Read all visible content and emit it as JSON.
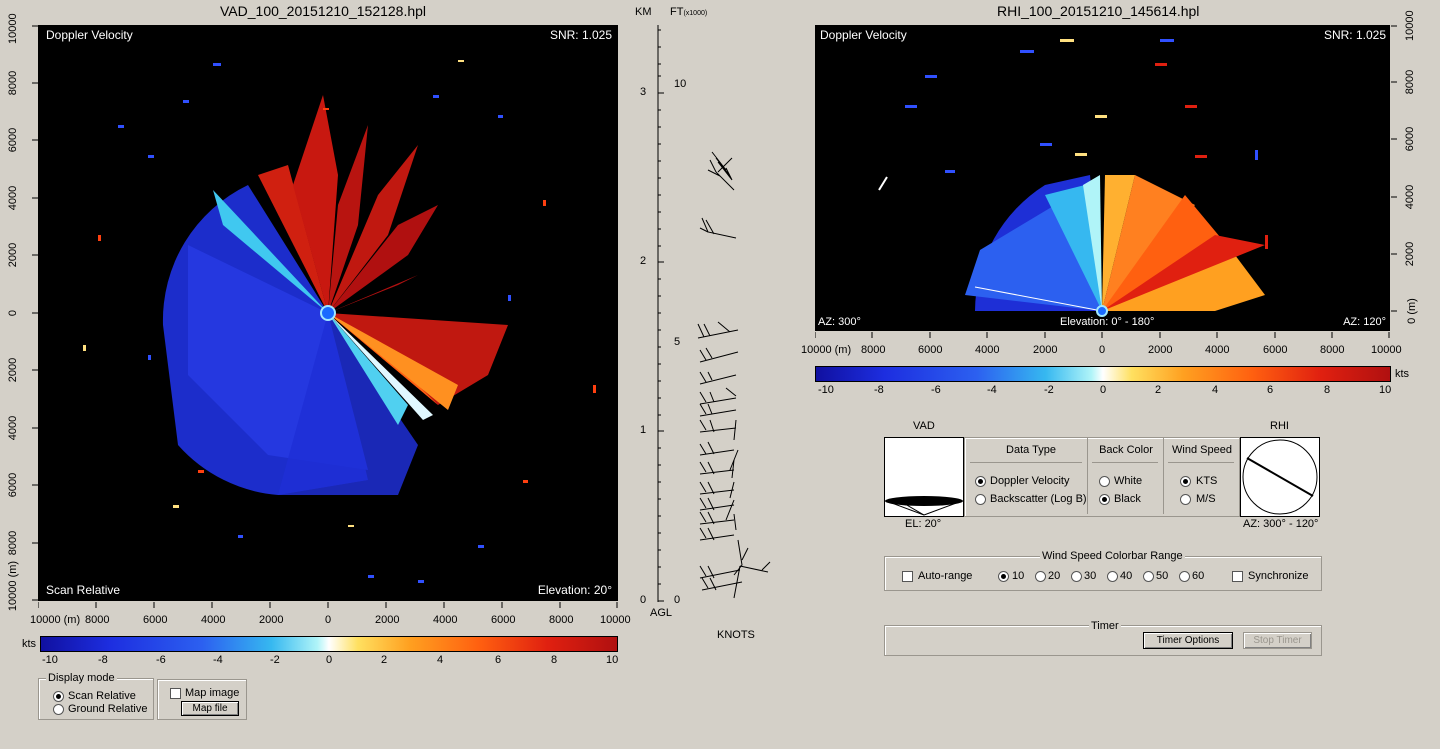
{
  "vad": {
    "title": "VAD_100_20151210_152128.hpl",
    "top_left": "Doppler Velocity",
    "top_right": "SNR: 1.025",
    "bottom_left": "Scan Relative",
    "bottom_right": "Elevation: 20°",
    "x_ticks": [
      "10000 (m)",
      "8000",
      "6000",
      "4000",
      "2000",
      "0",
      "2000",
      "4000",
      "6000",
      "8000",
      "10000"
    ],
    "y_ticks": [
      "10000",
      "8000",
      "6000",
      "4000",
      "2000",
      "0",
      "2000",
      "4000",
      "6000",
      "8000",
      "10000 (m)"
    ],
    "cbar_unit": "kts",
    "cbar_ticks": [
      "-10",
      "-8",
      "-6",
      "-4",
      "-2",
      "0",
      "2",
      "4",
      "6",
      "8",
      "10"
    ]
  },
  "profile": {
    "km_label": "KM",
    "ft_label": "FT",
    "ft_sub": "(x1000)",
    "km_ticks": [
      "3",
      "2",
      "1",
      "0"
    ],
    "ft_ticks": [
      "10",
      "5",
      "0"
    ],
    "agl_label": "AGL",
    "knots_label": "KNOTS"
  },
  "rhi": {
    "title": "RHI_100_20151210_145614.hpl",
    "top_left": "Doppler Velocity",
    "top_right": "SNR: 1.025",
    "bottom_left": "AZ: 300°",
    "bottom_center": "Elevation: 0° - 180°",
    "bottom_right": "AZ: 120°",
    "x_ticks": [
      "10000 (m)",
      "8000",
      "6000",
      "4000",
      "2000",
      "0",
      "2000",
      "4000",
      "6000",
      "8000",
      "10000"
    ],
    "y_ticks": [
      "10000",
      "8000",
      "6000",
      "4000",
      "2000",
      "0 (m)"
    ],
    "cbar_unit": "kts",
    "cbar_ticks": [
      "-10",
      "-8",
      "-6",
      "-4",
      "-2",
      "0",
      "2",
      "4",
      "6",
      "8",
      "10"
    ]
  },
  "display_mode": {
    "label": "Display mode",
    "options": [
      "Scan Relative",
      "Ground Relative"
    ],
    "selected": "Scan Relative"
  },
  "map": {
    "checkbox_label": "Map image",
    "button_label": "Map file"
  },
  "vad_preview": {
    "label": "VAD",
    "caption": "EL: 20°"
  },
  "rhi_preview": {
    "label": "RHI",
    "caption": "AZ: 300° - 120°"
  },
  "data_type": {
    "label": "Data Type",
    "options": [
      "Doppler Velocity",
      "Backscatter (Log B)"
    ],
    "selected": "Doppler Velocity"
  },
  "back_color": {
    "label": "Back Color",
    "options": [
      "White",
      "Black"
    ],
    "selected": "Black"
  },
  "wind_speed": {
    "label": "Wind Speed",
    "options": [
      "KTS",
      "M/S"
    ],
    "selected": "KTS"
  },
  "colorbar_range": {
    "label": "Wind Speed Colorbar Range",
    "auto_label": "Auto-range",
    "options": [
      "10",
      "20",
      "30",
      "40",
      "50",
      "60"
    ],
    "selected": "10",
    "sync_label": "Synchronize"
  },
  "timer": {
    "label": "Timer",
    "options_button": "Timer Options",
    "stop_button": "Stop Timer"
  }
}
